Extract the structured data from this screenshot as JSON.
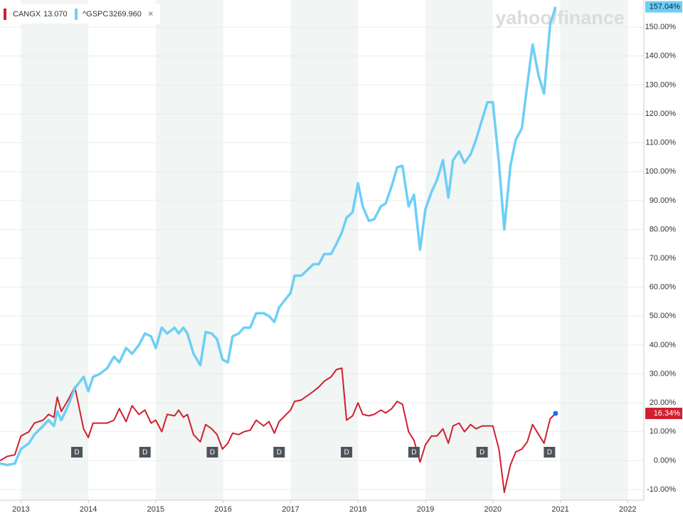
{
  "chart_data": {
    "type": "line",
    "watermark": "yahoo/finance",
    "remove_symbol": "×",
    "x": [
      2012.69,
      2012.8,
      2012.91,
      2013.0,
      2013.12,
      2013.2,
      2013.33,
      2013.41,
      2013.49,
      2013.54,
      2013.6,
      2013.7,
      2013.8,
      2013.93,
      2014.0,
      2014.07,
      2014.17,
      2014.28,
      2014.38,
      2014.46,
      2014.56,
      2014.65,
      2014.75,
      2014.84,
      2014.93,
      2015.0,
      2015.09,
      2015.17,
      2015.28,
      2015.34,
      2015.41,
      2015.47,
      2015.56,
      2015.66,
      2015.74,
      2015.83,
      2015.91,
      2015.99,
      2016.07,
      2016.14,
      2016.23,
      2016.31,
      2016.4,
      2016.49,
      2016.6,
      2016.68,
      2016.76,
      2016.83,
      2017.0,
      2017.06,
      2017.16,
      2017.25,
      2017.34,
      2017.42,
      2017.5,
      2017.6,
      2017.68,
      2017.76,
      2017.83,
      2017.92,
      2018.0,
      2018.07,
      2018.16,
      2018.24,
      2018.34,
      2018.41,
      2018.5,
      2018.58,
      2018.66,
      2018.75,
      2018.83,
      2018.92,
      2019.0,
      2019.09,
      2019.17,
      2019.26,
      2019.34,
      2019.41,
      2019.5,
      2019.58,
      2019.67,
      2019.75,
      2019.84,
      2019.92,
      2020.0,
      2020.09,
      2020.17,
      2020.26,
      2020.34,
      2020.43,
      2020.51,
      2020.59,
      2020.68,
      2020.76,
      2020.85,
      2020.93
    ],
    "series": [
      {
        "name": "CANGX",
        "last_price": "13.070",
        "color": "#d0202f",
        "end_label": "16.34%",
        "values": [
          0,
          1.5,
          2,
          8.5,
          10,
          13,
          14,
          16,
          15,
          22,
          17,
          21,
          25.5,
          11,
          8,
          13,
          13,
          13,
          14,
          18,
          13.5,
          19,
          16,
          17.5,
          13,
          14,
          10,
          16,
          15.5,
          17.5,
          15,
          16,
          9,
          6.5,
          12.5,
          11,
          9,
          4,
          6,
          9.5,
          9,
          10,
          10.5,
          14,
          12,
          13.5,
          9.5,
          13.5,
          17.5,
          20.5,
          21,
          22.5,
          24,
          25.5,
          27.5,
          29,
          31.5,
          32,
          14,
          15.5,
          20,
          16,
          15.5,
          16,
          17.5,
          16.5,
          18,
          20.5,
          19.5,
          10,
          7,
          -0.5,
          5.5,
          8.5,
          8.5,
          11,
          6,
          12,
          13,
          10,
          12.5,
          11,
          12,
          12,
          12,
          4,
          -11,
          -1.5,
          3,
          4,
          6.5,
          12.5,
          9,
          6,
          14.5,
          16.34
        ]
      },
      {
        "name": "^GSPC",
        "last_price": "3269.960",
        "color": "#6dcff6",
        "end_label": "157.04%",
        "values": [
          -1,
          -1.5,
          -1,
          4,
          6,
          9,
          12,
          14,
          12,
          17,
          14,
          19,
          25,
          29,
          24,
          29,
          30,
          32,
          36,
          34,
          39,
          37,
          40,
          44,
          43,
          39,
          46,
          44,
          46,
          44,
          46,
          44,
          37,
          33,
          44.5,
          44,
          42,
          35,
          34,
          43,
          44,
          46,
          46,
          51,
          51,
          50,
          48,
          53,
          58,
          64,
          64,
          66,
          68,
          68,
          71.5,
          71.5,
          75,
          79,
          84,
          86,
          96,
          88,
          83,
          83.5,
          88,
          89,
          95,
          101.5,
          102,
          88,
          92,
          73,
          87,
          93,
          97,
          104,
          91,
          104,
          107,
          103,
          106,
          111,
          118,
          124,
          124,
          103,
          80,
          102,
          111,
          115,
          130,
          144,
          133,
          127,
          151,
          157.04
        ]
      }
    ],
    "dividends": {
      "label": "D",
      "x": [
        2013.83,
        2014.84,
        2015.84,
        2016.83,
        2017.83,
        2018.83,
        2019.84,
        2020.84
      ]
    },
    "xlim": [
      2012.69,
      2022.24
    ],
    "xticks": [
      2013,
      2014,
      2015,
      2016,
      2017,
      2018,
      2019,
      2020,
      2021,
      2022
    ],
    "ylim": [
      -13.7,
      159.4
    ],
    "yticks": [
      {
        "value": -10,
        "label": "-10.00%"
      },
      {
        "value": 0,
        "label": "0.00%"
      },
      {
        "value": 10,
        "label": "10.00%"
      },
      {
        "value": 20,
        "label": "20.00%"
      },
      {
        "value": 30,
        "label": "30.00%"
      },
      {
        "value": 40,
        "label": "40.00%"
      },
      {
        "value": 50,
        "label": "50.00%"
      },
      {
        "value": 60,
        "label": "60.00%"
      },
      {
        "value": 70,
        "label": "70.00%"
      },
      {
        "value": 80,
        "label": "80.00%"
      },
      {
        "value": 90,
        "label": "90.00%"
      },
      {
        "value": 100,
        "label": "100.00%"
      },
      {
        "value": 110,
        "label": "110.00%"
      },
      {
        "value": 120,
        "label": "120.00%"
      },
      {
        "value": 130,
        "label": "130.00%"
      },
      {
        "value": 140,
        "label": "140.00%"
      },
      {
        "value": 150,
        "label": "150.00%"
      }
    ],
    "grid": true
  }
}
